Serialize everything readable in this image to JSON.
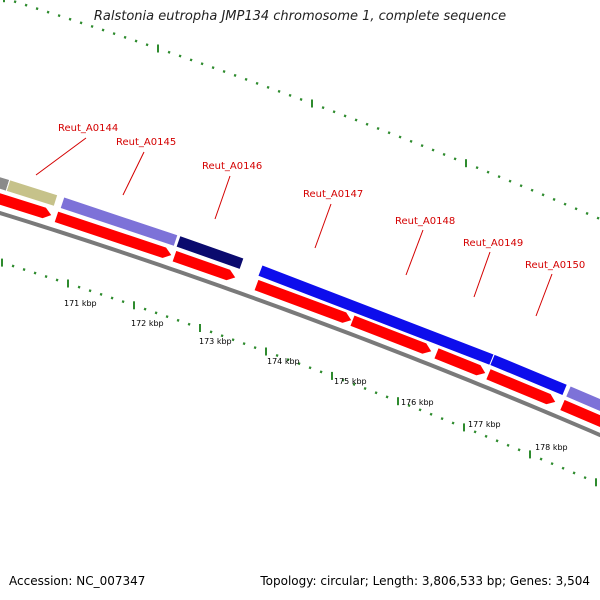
{
  "title": "Ralstonia eutropha JMP134 chromosome 1, complete sequence",
  "footer": {
    "accession": "Accession: NC_007347",
    "topology": "Topology: circular; Length: 3,806,533 bp; Genes: 3,504"
  },
  "colors": {
    "backbone": "#7a7a7a",
    "gene_arrow": "#ff0000",
    "feature_olive": "#c6c28a",
    "feature_lavender": "#7d72d8",
    "feature_navy": "#0a0a6e",
    "feature_blue": "#0d0dec",
    "tick": "#2e8b2e",
    "label": "#d40000"
  },
  "scale_labels": [
    "171 kbp",
    "172 kbp",
    "173 kbp",
    "174 kbp",
    "175 kbp",
    "176 kbp",
    "177 kbp",
    "178 kbp"
  ],
  "gene_labels": [
    "Reut_A0144",
    "Reut_A0145",
    "Reut_A0146",
    "Reut_A0147",
    "Reut_A0148",
    "Reut_A0149",
    "Reut_A0150"
  ]
}
